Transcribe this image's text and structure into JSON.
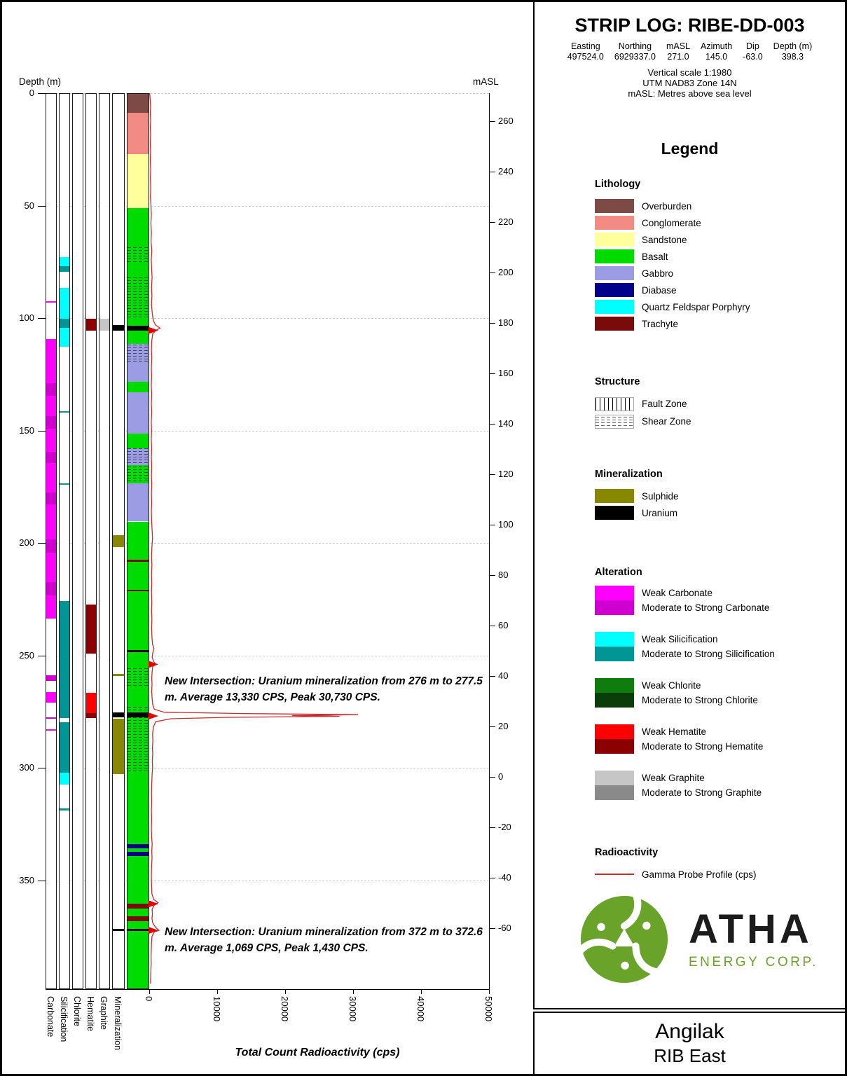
{
  "header": {
    "title": "STRIP LOG: RIBE-DD-003",
    "meta": [
      {
        "label": "Easting",
        "value": "497524.0"
      },
      {
        "label": "Northing",
        "value": "6929337.0"
      },
      {
        "label": "mASL",
        "value": "271.0"
      },
      {
        "label": "Azimuth",
        "value": "145.0"
      },
      {
        "label": "Dip",
        "value": "-63.0"
      },
      {
        "label": "Depth (m)",
        "value": "398.3"
      }
    ],
    "scale_notes": [
      "Vertical scale 1:1980",
      "UTM NAD83 Zone 14N",
      "mASL: Metres above sea level"
    ]
  },
  "legend": {
    "title": "Legend",
    "lithology": {
      "title": "Lithology",
      "items": [
        {
          "name": "Overburden",
          "color": "#7d4a45"
        },
        {
          "name": "Conglomerate",
          "color": "#f28b84"
        },
        {
          "name": "Sandstone",
          "color": "#ffff9c"
        },
        {
          "name": "Basalt",
          "color": "#00dc00"
        },
        {
          "name": "Gabbro",
          "color": "#9c9ce4"
        },
        {
          "name": "Diabase",
          "color": "#00008b"
        },
        {
          "name": "Quartz Feldspar Porphyry",
          "color": "#00ffff"
        },
        {
          "name": "Trachyte",
          "color": "#7a0b0b"
        }
      ]
    },
    "structure": {
      "title": "Structure",
      "items": [
        {
          "name": "Fault Zone",
          "pattern": "fault"
        },
        {
          "name": "Shear Zone",
          "pattern": "shear"
        }
      ]
    },
    "mineralization": {
      "title": "Mineralization",
      "items": [
        {
          "name": "Sulphide",
          "color": "#878700"
        },
        {
          "name": "Uranium",
          "color": "#000000"
        }
      ]
    },
    "alteration": {
      "title": "Alteration",
      "pairs": [
        {
          "weak": "Weak Carbonate",
          "strong": "Moderate to Strong Carbonate",
          "weak_color": "#ff00ff",
          "strong_color": "#cf00cf"
        },
        {
          "weak": "Weak Silicification",
          "strong": "Moderate to Strong Silicification",
          "weak_color": "#00ffff",
          "strong_color": "#009696"
        },
        {
          "weak": "Weak Chlorite",
          "strong": "Moderate to Strong Chlorite",
          "weak_color": "#0e7d0e",
          "strong_color": "#0a3d0a"
        },
        {
          "weak": "Weak Hematite",
          "strong": "Moderate to Strong Hematite",
          "weak_color": "#ff0000",
          "strong_color": "#8b0000"
        },
        {
          "weak": "Weak Graphite",
          "strong": "Moderate to Strong Graphite",
          "weak_color": "#c6c6c6",
          "strong_color": "#8a8a8a"
        }
      ]
    },
    "radioactivity": {
      "title": "Radioactivity",
      "items": [
        {
          "name": "Gamma Probe Profile (cps)",
          "color": "#cc2a2a"
        }
      ]
    }
  },
  "logo": {
    "brand": "ATHA",
    "subtitle": "ENERGY CORP.",
    "green": "#6aa32a"
  },
  "footer": {
    "project": "Angilak",
    "area": "RIB East"
  },
  "chart_data": {
    "type": "strip-log",
    "depth_axis_label": "Depth (m)",
    "masl_axis_label": "mASL",
    "x_axis_label": "Total Count Radioactivity (cps)",
    "depth_ticks": [
      0,
      50,
      100,
      150,
      200,
      250,
      300,
      350
    ],
    "max_depth_m": 398.3,
    "surface_masl": 271.0,
    "masl_per_m": 0.891,
    "masl_ticks": [
      260,
      240,
      220,
      200,
      180,
      160,
      140,
      120,
      100,
      80,
      60,
      40,
      20,
      0,
      -20,
      -40,
      -60
    ],
    "cps_ticks": [
      0,
      10000,
      20000,
      30000,
      40000,
      50000
    ],
    "cps_max": 50000,
    "anomaly_marker_color": "#e00000",
    "column_labels": [
      "Carbonate",
      "Silicification",
      "Chlorite",
      "Hematite",
      "Graphite",
      "Mineralization"
    ],
    "lithology": [
      {
        "from": 0,
        "to": 8.7,
        "unit": "Overburden"
      },
      {
        "from": 8.7,
        "to": 27,
        "unit": "Conglomerate"
      },
      {
        "from": 27,
        "to": 51,
        "unit": "Sandstone"
      },
      {
        "from": 51,
        "to": 68,
        "unit": "Basalt"
      },
      {
        "from": 68,
        "to": 76,
        "unit": "Basalt",
        "shear": true
      },
      {
        "from": 76,
        "to": 82,
        "unit": "Basalt"
      },
      {
        "from": 82,
        "to": 100.5,
        "unit": "Basalt",
        "shear": true
      },
      {
        "from": 100.5,
        "to": 103.4,
        "unit": "Basalt"
      },
      {
        "from": 103.4,
        "to": 105.5,
        "unit": "Uranium"
      },
      {
        "from": 105.5,
        "to": 111.5,
        "unit": "Basalt"
      },
      {
        "from": 111.5,
        "to": 120.5,
        "unit": "Gabbro",
        "shear": true
      },
      {
        "from": 120.5,
        "to": 128.5,
        "unit": "Gabbro"
      },
      {
        "from": 128.5,
        "to": 133,
        "unit": "Basalt"
      },
      {
        "from": 133,
        "to": 151.5,
        "unit": "Gabbro"
      },
      {
        "from": 151.5,
        "to": 158,
        "unit": "Basalt"
      },
      {
        "from": 158,
        "to": 165.5,
        "unit": "Gabbro",
        "shear": true
      },
      {
        "from": 165.5,
        "to": 173.5,
        "unit": "Basalt",
        "shear": true
      },
      {
        "from": 173.5,
        "to": 190.5,
        "unit": "Gabbro"
      },
      {
        "from": 190.5,
        "to": 207.5,
        "unit": "Basalt"
      },
      {
        "from": 207.5,
        "to": 208.3,
        "unit": "Trachyte"
      },
      {
        "from": 208.3,
        "to": 220.8,
        "unit": "Basalt"
      },
      {
        "from": 220.8,
        "to": 221.6,
        "unit": "Trachyte"
      },
      {
        "from": 221.6,
        "to": 247.8,
        "unit": "Basalt"
      },
      {
        "from": 247.8,
        "to": 248.6,
        "unit": "Uranium"
      },
      {
        "from": 248.6,
        "to": 255.5,
        "unit": "Basalt"
      },
      {
        "from": 255.5,
        "to": 264.5,
        "unit": "Basalt",
        "shear": true
      },
      {
        "from": 264.5,
        "to": 272.5,
        "unit": "Basalt"
      },
      {
        "from": 272.5,
        "to": 275.3,
        "unit": "Basalt",
        "shear": true
      },
      {
        "from": 275.3,
        "to": 277.5,
        "unit": "Uranium"
      },
      {
        "from": 277.5,
        "to": 302.5,
        "unit": "Basalt",
        "shear": true
      },
      {
        "from": 302.5,
        "to": 334,
        "unit": "Basalt"
      },
      {
        "from": 334,
        "to": 335.8,
        "unit": "Diabase"
      },
      {
        "from": 335.8,
        "to": 337.5,
        "unit": "Basalt"
      },
      {
        "from": 337.5,
        "to": 339.3,
        "unit": "Diabase"
      },
      {
        "from": 339.3,
        "to": 360.5,
        "unit": "Basalt"
      },
      {
        "from": 360.5,
        "to": 362.6,
        "unit": "Trachyte"
      },
      {
        "from": 362.6,
        "to": 366,
        "unit": "Basalt"
      },
      {
        "from": 366,
        "to": 368.3,
        "unit": "Trachyte"
      },
      {
        "from": 368.3,
        "to": 371.8,
        "unit": "Basalt"
      },
      {
        "from": 371.8,
        "to": 372.6,
        "unit": "Uranium"
      },
      {
        "from": 372.6,
        "to": 398.3,
        "unit": "Basalt"
      }
    ],
    "alteration": {
      "Carbonate": [
        {
          "from": 92.5,
          "to": 93.3,
          "grade": "weak"
        },
        {
          "from": 109.5,
          "to": 129,
          "grade": "weak"
        },
        {
          "from": 129,
          "to": 134.5,
          "grade": "strong"
        },
        {
          "from": 134.5,
          "to": 143.5,
          "grade": "weak"
        },
        {
          "from": 143.5,
          "to": 149.5,
          "grade": "strong"
        },
        {
          "from": 149.5,
          "to": 159.5,
          "grade": "weak"
        },
        {
          "from": 159.5,
          "to": 164.5,
          "grade": "strong"
        },
        {
          "from": 164.5,
          "to": 177.5,
          "grade": "weak"
        },
        {
          "from": 177.5,
          "to": 183,
          "grade": "strong"
        },
        {
          "from": 183,
          "to": 198.5,
          "grade": "weak"
        },
        {
          "from": 198.5,
          "to": 204.5,
          "grade": "strong"
        },
        {
          "from": 204.5,
          "to": 217.5,
          "grade": "weak"
        },
        {
          "from": 217.5,
          "to": 223.5,
          "grade": "strong"
        },
        {
          "from": 223.5,
          "to": 233.5,
          "grade": "weak"
        },
        {
          "from": 259,
          "to": 261.5,
          "grade": "strong"
        },
        {
          "from": 266.5,
          "to": 271,
          "grade": "weak"
        },
        {
          "from": 277.5,
          "to": 278.3,
          "grade": "strong"
        },
        {
          "from": 282.8,
          "to": 283.5,
          "grade": "weak"
        }
      ],
      "Silicification": [
        {
          "from": 73,
          "to": 77,
          "grade": "weak"
        },
        {
          "from": 77,
          "to": 79.5,
          "grade": "strong"
        },
        {
          "from": 86.5,
          "to": 100.3,
          "grade": "weak"
        },
        {
          "from": 100.3,
          "to": 104.5,
          "grade": "strong"
        },
        {
          "from": 104.5,
          "to": 112.8,
          "grade": "weak"
        },
        {
          "from": 141.4,
          "to": 142.2,
          "grade": "strong"
        },
        {
          "from": 173.4,
          "to": 174.2,
          "grade": "strong"
        },
        {
          "from": 226,
          "to": 277.8,
          "grade": "strong"
        },
        {
          "from": 279.8,
          "to": 302.3,
          "grade": "strong"
        },
        {
          "from": 302.3,
          "to": 307.5,
          "grade": "weak"
        },
        {
          "from": 318.2,
          "to": 319,
          "grade": "strong"
        }
      ],
      "Chlorite": [],
      "Hematite": [
        {
          "from": 100.3,
          "to": 105.5,
          "grade": "strong"
        },
        {
          "from": 227.5,
          "to": 249.3,
          "grade": "strong"
        },
        {
          "from": 266.8,
          "to": 275.8,
          "grade": "weak"
        },
        {
          "from": 275.8,
          "to": 277.8,
          "grade": "strong"
        }
      ],
      "Graphite": [
        {
          "from": 100.3,
          "to": 105.5,
          "grade": "weak"
        }
      ]
    },
    "mineralization": [
      {
        "from": 103.2,
        "to": 105.5,
        "type": "Uranium"
      },
      {
        "from": 196.5,
        "to": 202,
        "type": "Sulphide"
      },
      {
        "from": 258.4,
        "to": 259.2,
        "type": "Sulphide"
      },
      {
        "from": 275.3,
        "to": 277.6,
        "type": "Uranium"
      },
      {
        "from": 278.3,
        "to": 302.8,
        "type": "Sulphide"
      },
      {
        "from": 371.6,
        "to": 372.6,
        "type": "Uranium"
      }
    ],
    "anomaly_markers_m": [
      105.5,
      254,
      277,
      360.5,
      372.3
    ],
    "gamma_cps": [
      [
        0,
        60
      ],
      [
        3,
        140
      ],
      [
        6,
        200
      ],
      [
        9,
        160
      ],
      [
        12,
        220
      ],
      [
        15,
        170
      ],
      [
        18,
        210
      ],
      [
        22,
        160
      ],
      [
        26,
        200
      ],
      [
        30,
        170
      ],
      [
        34,
        220
      ],
      [
        38,
        180
      ],
      [
        42,
        230
      ],
      [
        46,
        190
      ],
      [
        50,
        260
      ],
      [
        54,
        310
      ],
      [
        58,
        250
      ],
      [
        62,
        320
      ],
      [
        66,
        270
      ],
      [
        70,
        380
      ],
      [
        74,
        300
      ],
      [
        78,
        350
      ],
      [
        82,
        420
      ],
      [
        86,
        340
      ],
      [
        90,
        390
      ],
      [
        94,
        330
      ],
      [
        98,
        450
      ],
      [
        101,
        600
      ],
      [
        103,
        900
      ],
      [
        104.5,
        1600
      ],
      [
        105.5,
        950
      ],
      [
        107,
        520
      ],
      [
        110,
        380
      ],
      [
        114,
        320
      ],
      [
        118,
        370
      ],
      [
        122,
        310
      ],
      [
        126,
        350
      ],
      [
        130,
        300
      ],
      [
        134,
        360
      ],
      [
        138,
        310
      ],
      [
        142,
        360
      ],
      [
        146,
        300
      ],
      [
        150,
        340
      ],
      [
        154,
        300
      ],
      [
        158,
        350
      ],
      [
        162,
        310
      ],
      [
        166,
        360
      ],
      [
        170,
        320
      ],
      [
        174,
        370
      ],
      [
        178,
        320
      ],
      [
        182,
        360
      ],
      [
        186,
        310
      ],
      [
        190,
        350
      ],
      [
        194,
        420
      ],
      [
        198,
        480
      ],
      [
        202,
        390
      ],
      [
        206,
        340
      ],
      [
        210,
        390
      ],
      [
        214,
        330
      ],
      [
        218,
        370
      ],
      [
        222,
        330
      ],
      [
        226,
        380
      ],
      [
        230,
        340
      ],
      [
        234,
        390
      ],
      [
        238,
        350
      ],
      [
        242,
        400
      ],
      [
        245,
        480
      ],
      [
        247,
        700
      ],
      [
        249,
        520
      ],
      [
        251,
        430
      ],
      [
        253,
        700
      ],
      [
        254,
        950
      ],
      [
        255,
        520
      ],
      [
        257,
        430
      ],
      [
        260,
        370
      ],
      [
        263,
        410
      ],
      [
        266,
        360
      ],
      [
        269,
        420
      ],
      [
        272,
        520
      ],
      [
        274,
        750
      ],
      [
        275.3,
        2200
      ],
      [
        275.9,
        14000
      ],
      [
        276.4,
        30730
      ],
      [
        276.8,
        21000
      ],
      [
        277.1,
        28000
      ],
      [
        277.6,
        11000
      ],
      [
        278.2,
        3200
      ],
      [
        279.5,
        950
      ],
      [
        282,
        600
      ],
      [
        285,
        500
      ],
      [
        288,
        540
      ],
      [
        291,
        470
      ],
      [
        294,
        520
      ],
      [
        297,
        450
      ],
      [
        300,
        500
      ],
      [
        303,
        420
      ],
      [
        307,
        370
      ],
      [
        311,
        330
      ],
      [
        315,
        360
      ],
      [
        319,
        320
      ],
      [
        323,
        350
      ],
      [
        327,
        310
      ],
      [
        331,
        360
      ],
      [
        334,
        430
      ],
      [
        337,
        370
      ],
      [
        340,
        410
      ],
      [
        344,
        340
      ],
      [
        348,
        310
      ],
      [
        352,
        340
      ],
      [
        356,
        390
      ],
      [
        358.5,
        650
      ],
      [
        360,
        1300
      ],
      [
        361.2,
        700
      ],
      [
        363,
        420
      ],
      [
        365,
        470
      ],
      [
        367,
        400
      ],
      [
        369,
        520
      ],
      [
        371,
        950
      ],
      [
        372.3,
        1430
      ],
      [
        373,
        750
      ],
      [
        375,
        400
      ],
      [
        378,
        330
      ],
      [
        381,
        300
      ],
      [
        384,
        270
      ],
      [
        387,
        290
      ],
      [
        390,
        250
      ],
      [
        393,
        230
      ],
      [
        396,
        200
      ]
    ],
    "annotations": [
      {
        "depth_m": 258,
        "text": "New Intersection: Uranium mineralization from 276 m to 277.5 m. Average 13,330 CPS, Peak 30,730 CPS."
      },
      {
        "depth_m": 369.5,
        "text": "New Intersection: Uranium mineralization from 372 m to 372.6 m. Average 1,069 CPS, Peak 1,430 CPS."
      }
    ]
  }
}
